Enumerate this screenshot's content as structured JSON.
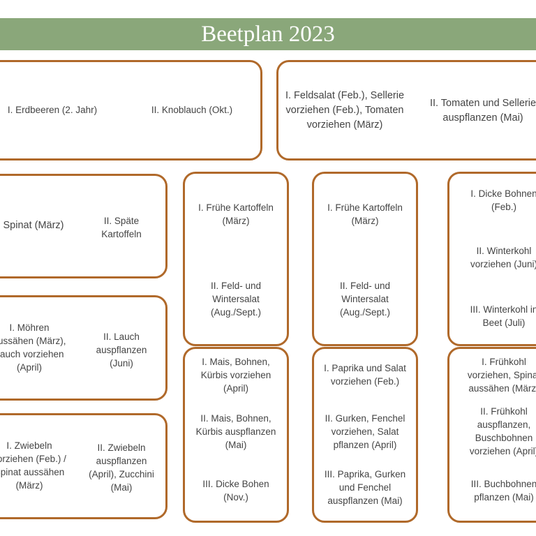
{
  "header": {
    "title": "Beetplan 2023"
  },
  "beds": {
    "top_left": {
      "a": "I. Erdbeeren (2. Jahr)",
      "b": "II. Knoblauch  (Okt.)"
    },
    "top_right": {
      "a": "I. Feldsalat (Feb.), Sellerie\nvorziehen (Feb.), Tomaten\nvorziehen (März)",
      "b": "II. Tomaten und Sellerie\nauspflanzen (Mai)"
    },
    "left1": {
      "a": "Spinat (März)",
      "b": "II. Späte\nKartoffeln"
    },
    "left2": {
      "a": "I. Möhren\naussähen (März),\nLauch vorziehen\n(April)",
      "b": "II. Lauch\nauspflanzen\n(Juni)"
    },
    "left3": {
      "a": "I. Zwiebeln\nvorziehen (Feb.) /\nSpinat aussähen\n(März)",
      "b": "II. Zwiebeln\nauspflanzen\n(April), Zucchini\n(Mai)"
    },
    "col2_top": {
      "a": "I. Frühe Kartoffeln\n(März)",
      "b": "II. Feld- und\nWintersalat\n(Aug./Sept.)"
    },
    "col2_bottom": {
      "a": "I. Mais, Bohnen,\nKürbis vorziehen\n(April)",
      "b": "II. Mais, Bohnen,\nKürbis auspflanzen\n(Mai)",
      "c": "III. Dicke Bohen\n(Nov.)"
    },
    "col3_top": {
      "a": "I. Frühe Kartoffeln\n(März)",
      "b": "II. Feld- und\nWintersalat\n(Aug./Sept.)"
    },
    "col3_bottom": {
      "a": "I. Paprika und Salat\nvorziehen (Feb.)",
      "b": "II. Gurken, Fenchel\nvorziehen, Salat\npflanzen (April)",
      "c": "III. Paprika, Gurken\nund Fenchel\nauspflanzen (Mai)"
    },
    "col4_top": {
      "a": "I. Dicke Bohnen\n(Feb.)",
      "b": "II. Winterkohl\nvorziehen (Juni)",
      "c": "III. Winterkohl in\nBeet (Juli)"
    },
    "col4_bottom": {
      "a": "I. Frühkohl\nvorziehen, Spinat\naussähen (März)",
      "b": "II. Frühkohl\nauspflanzen,\nBuschbohnen\nvorziehen (April)",
      "c": "III. Buchbohnen\npflanzen (Mai)"
    }
  },
  "colors": {
    "banner": "#8aa77a",
    "bed_border": "#b0692a"
  }
}
